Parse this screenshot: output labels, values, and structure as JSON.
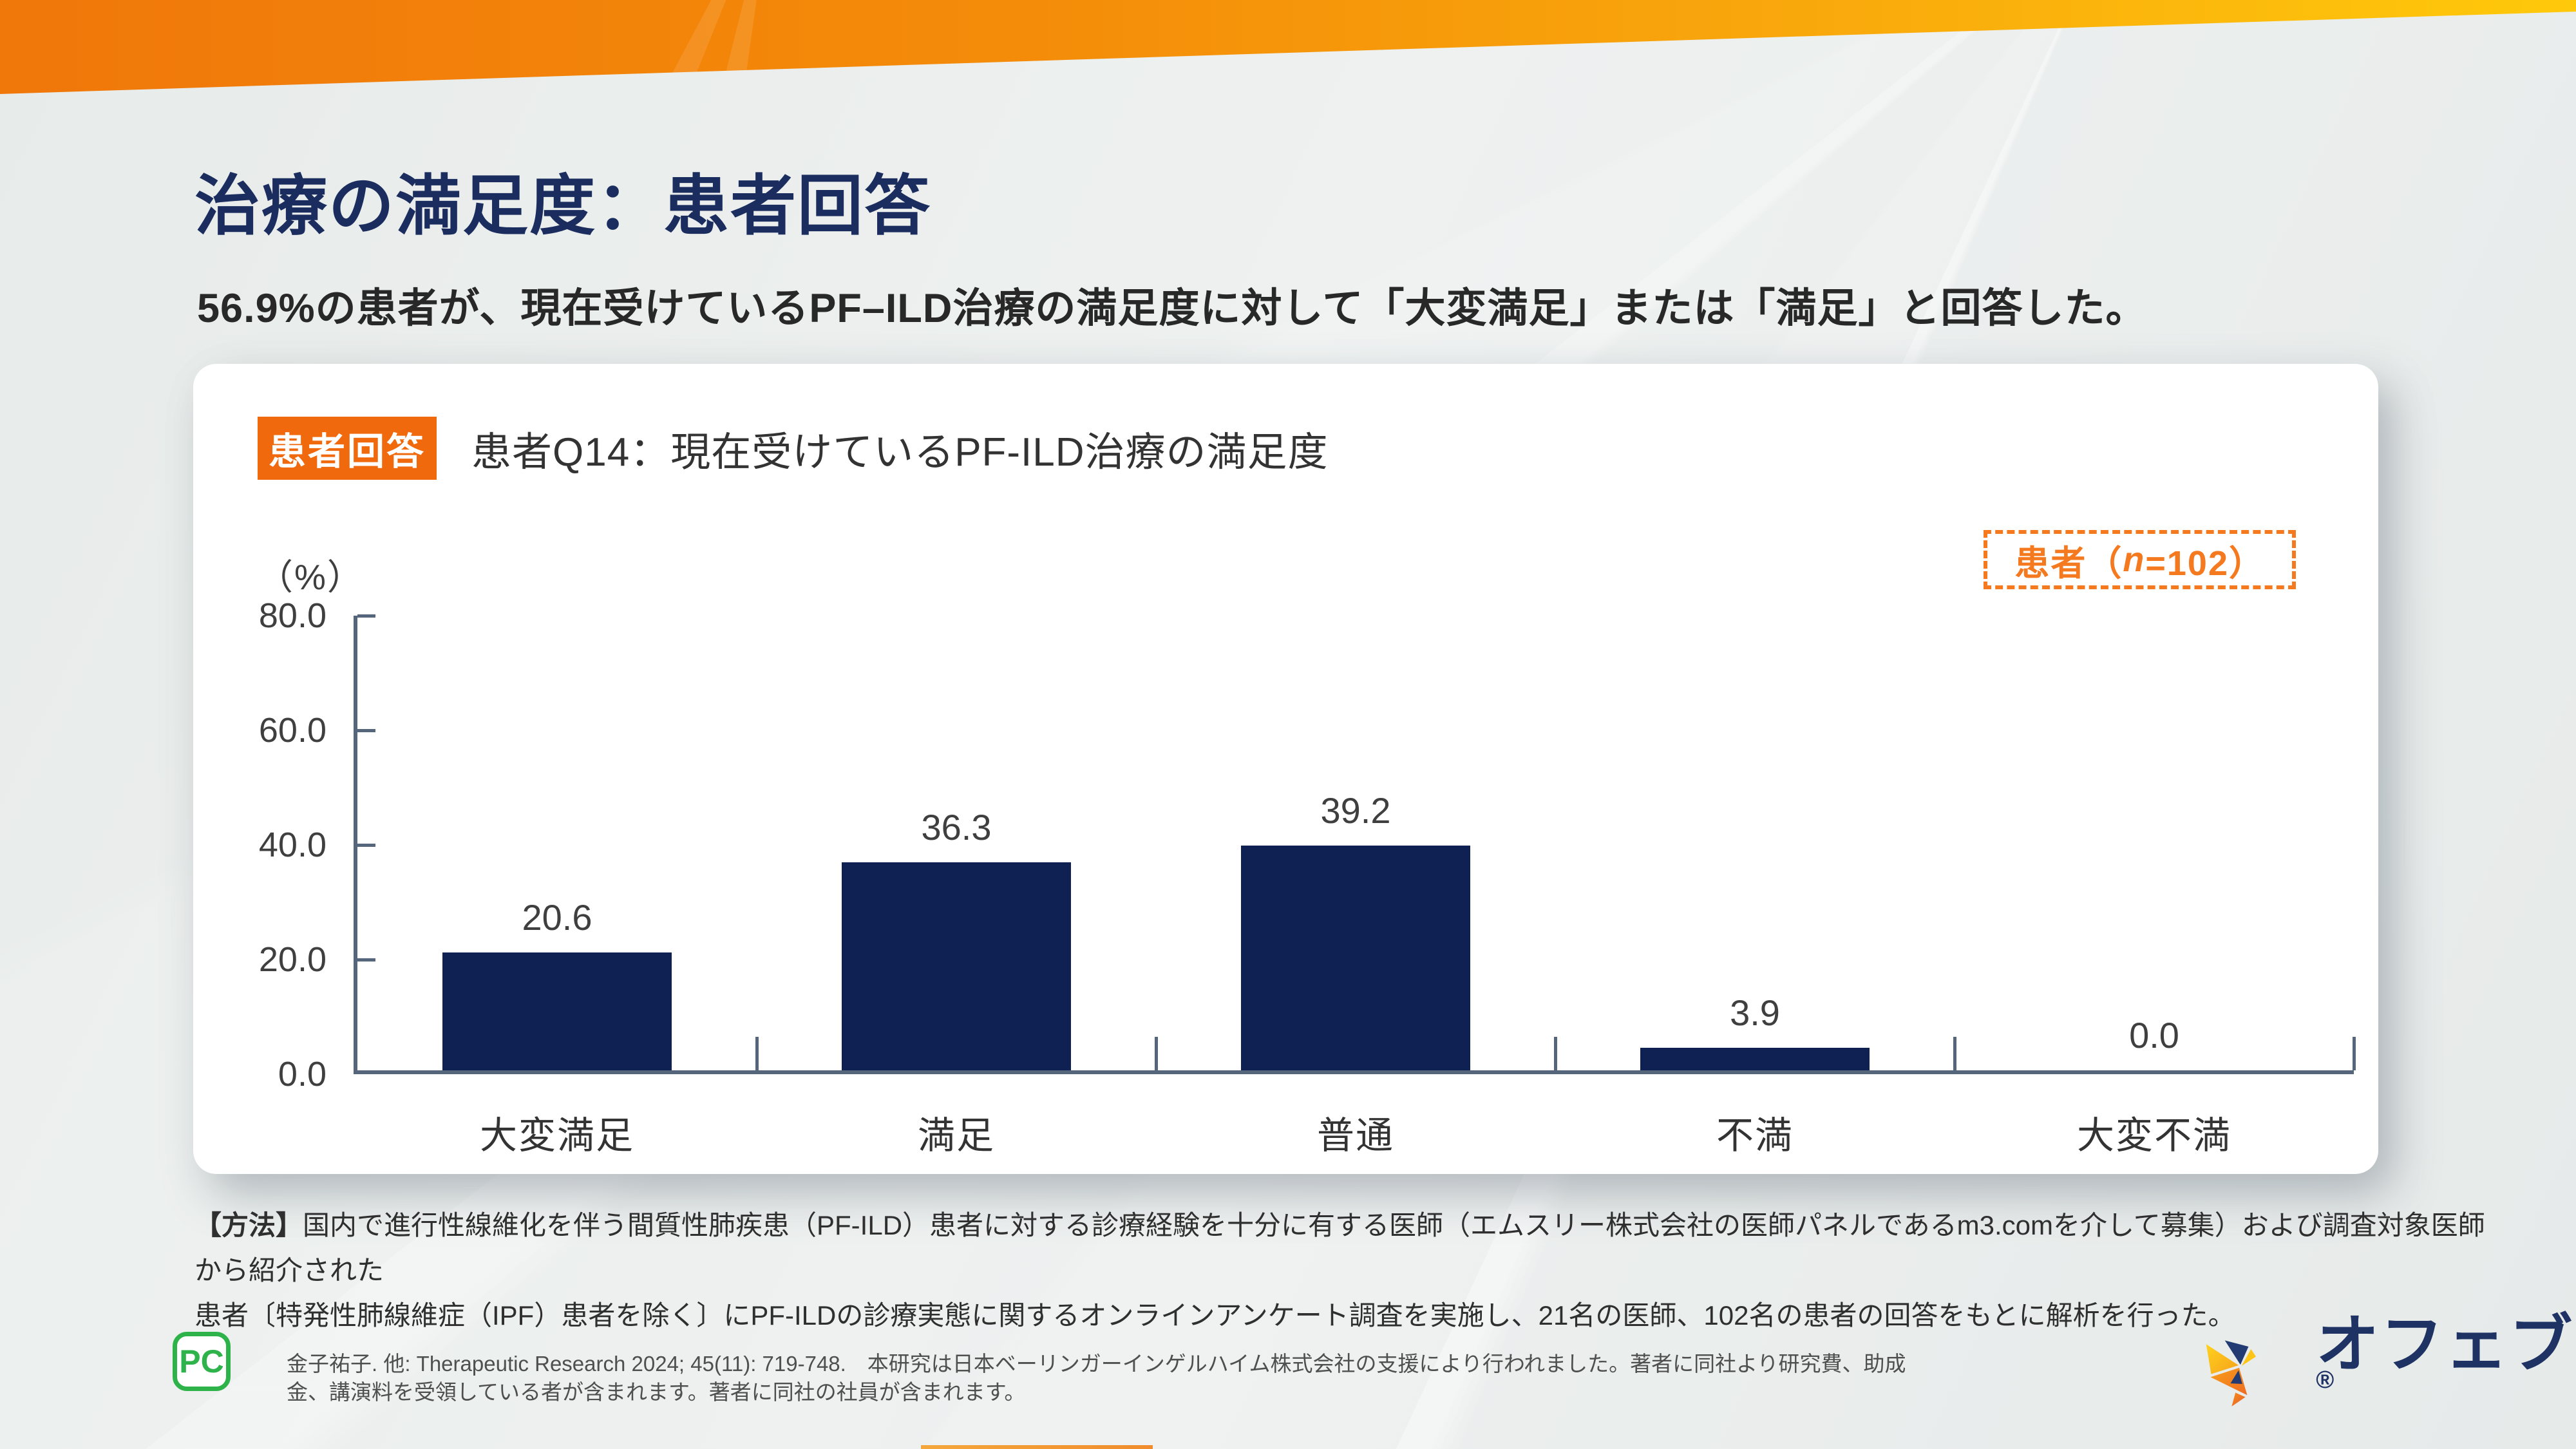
{
  "header": {
    "title": "治療の満足度：患者回答",
    "subtitle": "56.9%の患者が、現在受けているPF–ILD治療の満足度に対して「大変満足」または「満足」と回答した。"
  },
  "card": {
    "badge_label": "患者回答",
    "question": "患者Q14：現在受けているPF-ILD治療の満足度",
    "legend_prefix": "患者（",
    "legend_n": "n",
    "legend_suffix": "=102）"
  },
  "chart_data": {
    "type": "bar",
    "title": "患者Q14：現在受けているPF-ILD治療の満足度",
    "categories": [
      "大変満足",
      "満足",
      "普通",
      "不満",
      "大変不満"
    ],
    "values": [
      20.6,
      36.3,
      39.2,
      3.9,
      0.0
    ],
    "value_labels": [
      "20.6",
      "36.3",
      "39.2",
      "3.9",
      "0.0"
    ],
    "ylabel": "（%）",
    "ylim": [
      0,
      80
    ],
    "yticks": [
      0,
      20,
      40,
      60,
      80
    ],
    "ytick_labels": [
      "0.0",
      "20.0",
      "40.0",
      "60.0",
      "80.0"
    ],
    "grid": false,
    "legend": "患者（n=102）",
    "legend_position": "top-right",
    "bar_color": "#0e2152"
  },
  "footer": {
    "method_label": "【方法】",
    "method_line1": "国内で進行性線維化を伴う間質性肺疾患（PF-ILD）患者に対する診療経験を十分に有する医師（エムスリー株式会社の医師パネルであるm3.comを介して募集）および調査対象医師から紹介された",
    "method_line2": "患者〔特発性肺線維症（IPF）患者を除く〕にPF-ILDの診療実態に関するオンラインアンケート調査を実施し、21名の医師、102名の患者の回答をもとに解析を行った。",
    "pc_icon_label": "PC",
    "citation": "金子祐子. 他: Therapeutic Research 2024; 45(11): 719-748.　本研究は日本ベーリンガーインゲルハイム株式会社の支援により行われました。著者に同社より研究費、助成金、講演料を受領している者が含まれます。著者に同社の社員が含まれます。",
    "logo_text": "オフェブ",
    "logo_reg": "®"
  },
  "colors": {
    "accent_orange": "#f0690d",
    "band_orange_left": "#f0770a",
    "band_yellow_right": "#ffc90b",
    "title_navy": "#1b2d5e",
    "bar_navy": "#0e2152",
    "legend_orange": "#f4791f",
    "axis_slate": "#54657c",
    "pc_green": "#2eb24a"
  }
}
